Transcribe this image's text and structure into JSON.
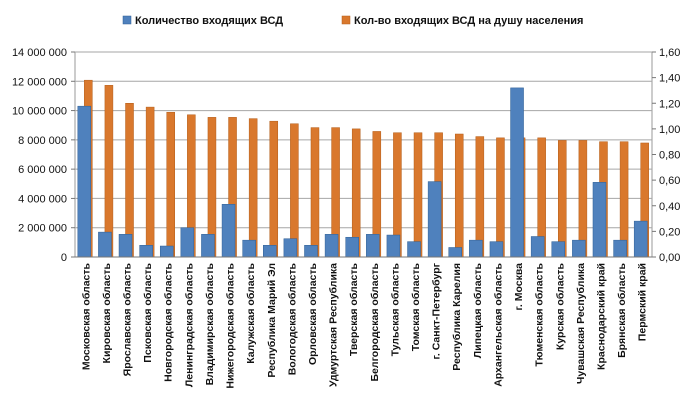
{
  "chart_data": {
    "type": "bar",
    "title": "",
    "xlabel": "",
    "ylabel": "",
    "ylabel_right": "",
    "categories": [
      "Московская  область",
      "Кировская  область",
      "Ярославская  область",
      "Псковская  область",
      "Новгородская  область",
      "Ленинградская  область",
      "Владимирская  область",
      "Нижегородская  область",
      "Калужская  область",
      "Республика  Марий  Эл",
      "Вологодская  область",
      "Орловская  область",
      "Удмуртская  Республика",
      "Тверская  область",
      "Белгородская  область",
      "Тульская  область",
      "Томская  область",
      "г. Санкт-Петербург",
      "Республика  Карелия",
      "Липецкая  область",
      "Архангельская  область",
      "г. Москва",
      "Тюменская  область",
      "Курская  область",
      "Чувашская  Республика",
      "Краснодарский  край",
      "Брянская  область",
      "Пермский  край"
    ],
    "series": [
      {
        "name": "Количество  входящих  ВСД",
        "axis": "left",
        "color": "#4F81BD",
        "values": [
          10300000,
          1700000,
          1550000,
          800000,
          750000,
          2000000,
          1550000,
          3600000,
          1150000,
          800000,
          1250000,
          800000,
          1550000,
          1350000,
          1550000,
          1500000,
          1050000,
          5150000,
          650000,
          1150000,
          1050000,
          11550000,
          1400000,
          1050000,
          1150000,
          5100000,
          1150000,
          2450000
        ]
      },
      {
        "name": "Кол-во  входящих  ВСД  на  душу  населения",
        "axis": "right",
        "color": "#D9782D",
        "values": [
          1.38,
          1.34,
          1.2,
          1.17,
          1.13,
          1.11,
          1.09,
          1.09,
          1.08,
          1.06,
          1.04,
          1.01,
          1.01,
          1.0,
          0.98,
          0.97,
          0.97,
          0.97,
          0.96,
          0.94,
          0.93,
          0.93,
          0.93,
          0.91,
          0.91,
          0.9,
          0.9,
          0.89
        ]
      }
    ],
    "ylim": [
      0,
      14000000
    ],
    "ylim_right": [
      0,
      1.6
    ],
    "yticks": [
      "0",
      "2 000 000",
      "4 000 000",
      "6 000 000",
      "8 000 000",
      "10 000 000",
      "12 000 000",
      "14 000 000"
    ],
    "yticks_right": [
      "0,00",
      "0,20",
      "0,40",
      "0,60",
      "0,80",
      "1,00",
      "1,20",
      "1,40",
      "1,60"
    ],
    "grid": true,
    "legend_position": "top"
  }
}
